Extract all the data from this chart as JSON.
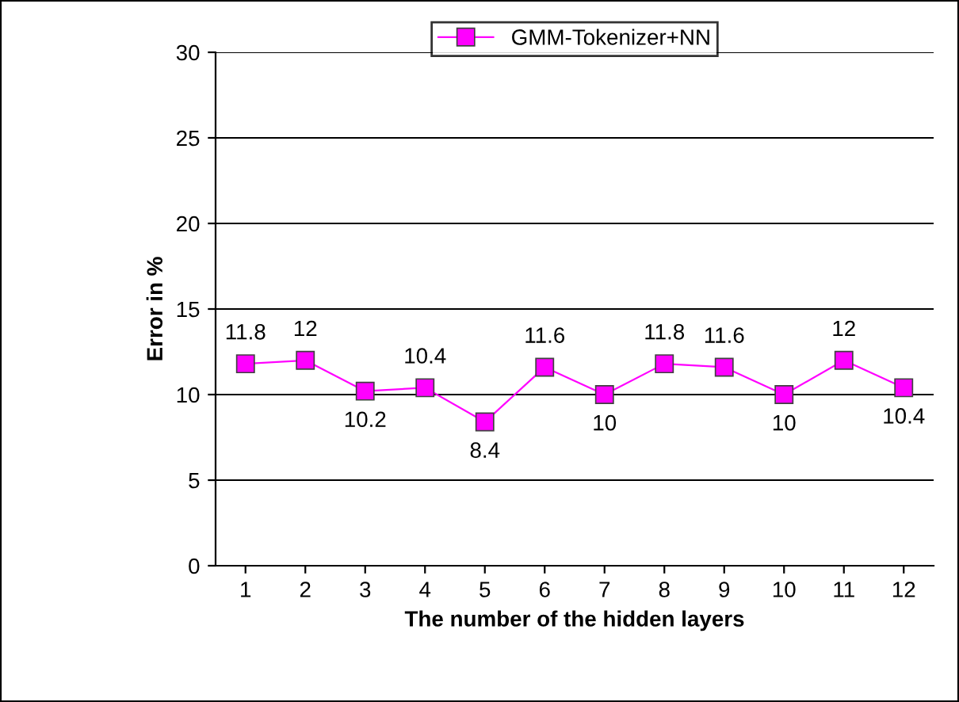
{
  "chart_data": {
    "type": "line",
    "xlabel": "The number of the hidden layers",
    "ylabel": "Error in %",
    "categories": [
      "1",
      "2",
      "3",
      "4",
      "5",
      "6",
      "7",
      "8",
      "9",
      "10",
      "11",
      "12"
    ],
    "series": [
      {
        "name": "GMM-Tokenizer+NN",
        "color": "#ff00ff",
        "values": [
          11.8,
          12,
          10.2,
          10.4,
          8.4,
          11.6,
          10,
          11.8,
          11.6,
          10,
          12,
          10.4
        ]
      }
    ],
    "ylim": [
      0,
      30
    ],
    "yticks": [
      0,
      5,
      10,
      15,
      20,
      25,
      30
    ],
    "grid": "y",
    "legend": "top",
    "marker": "square",
    "line_style": "solid",
    "data_labels": true
  }
}
